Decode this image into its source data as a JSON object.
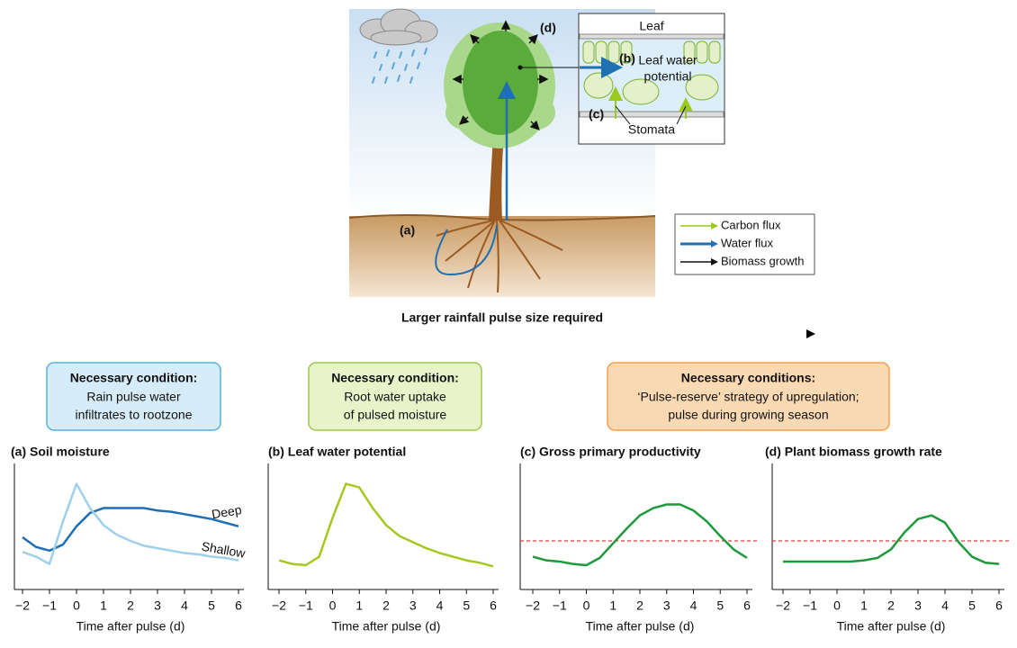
{
  "diagram": {
    "leaf_title": "Leaf",
    "label_b": "(b)",
    "leaf_water_potential": [
      "Leaf water",
      "potential"
    ],
    "label_c": "(c)",
    "stomata": "Stomata",
    "label_d": "(d)",
    "label_a": "(a)",
    "legend": [
      {
        "name": "Carbon flux",
        "color": "#9cc91e"
      },
      {
        "name": "Water flux",
        "color": "#1f6fb4"
      },
      {
        "name": "Biomass growth",
        "color": "#111111"
      }
    ]
  },
  "arrow_label": "Larger rainfall pulse size required",
  "conditions": [
    {
      "title": "Necessary condition:",
      "lines": [
        "Rain pulse water",
        "infiltrates to rootzone"
      ]
    },
    {
      "title": "Necessary condition:",
      "lines": [
        "Root water uptake",
        "of pulsed moisture"
      ]
    },
    {
      "title": "Necessary conditions:",
      "lines": [
        "‘Pulse-reserve’ strategy of upregulation;",
        "pulse during growing season"
      ]
    }
  ],
  "chart_data": [
    {
      "type": "line",
      "title": "(a)  Soil moisture",
      "xlabel": "Time after pulse (d)",
      "x": [
        -2,
        -1.5,
        -1,
        -0.5,
        0,
        0.5,
        1,
        1.5,
        2,
        2.5,
        3,
        3.5,
        4,
        4.5,
        5,
        5.5,
        6
      ],
      "series": [
        {
          "name": "Deep",
          "color": "#1f6fb4",
          "values": [
            0.43,
            0.35,
            0.32,
            0.37,
            0.52,
            0.63,
            0.67,
            0.67,
            0.67,
            0.67,
            0.65,
            0.64,
            0.62,
            0.6,
            0.58,
            0.55,
            0.52
          ]
        },
        {
          "name": "Shallow",
          "color": "#9fd0ea",
          "values": [
            0.31,
            0.27,
            0.21,
            0.56,
            0.87,
            0.67,
            0.53,
            0.45,
            0.4,
            0.36,
            0.34,
            0.32,
            0.3,
            0.29,
            0.27,
            0.26,
            0.24
          ]
        }
      ],
      "xlim": [
        -2,
        6
      ],
      "ylim": [
        0,
        1
      ],
      "xticks": [
        {
          "value": -2,
          "label": "−2"
        },
        {
          "value": -1,
          "label": "−1"
        },
        0,
        1,
        2,
        3,
        4,
        5,
        6
      ]
    },
    {
      "type": "line",
      "title": "(b)  Leaf water potential",
      "xlabel": "Time after pulse (d)",
      "x": [
        -2,
        -1.5,
        -1,
        -0.5,
        0,
        0.5,
        1,
        1.5,
        2,
        2.5,
        3,
        3.5,
        4,
        4.5,
        5,
        5.5,
        6
      ],
      "series": [
        {
          "color": "#a6c81e",
          "values": [
            0.24,
            0.21,
            0.2,
            0.27,
            0.59,
            0.87,
            0.84,
            0.67,
            0.53,
            0.44,
            0.39,
            0.34,
            0.3,
            0.27,
            0.24,
            0.22,
            0.19
          ]
        }
      ],
      "xlim": [
        -2,
        6
      ],
      "ylim": [
        0,
        1
      ],
      "xticks": [
        {
          "value": -2,
          "label": "−2"
        },
        {
          "value": -1,
          "label": "−1"
        },
        0,
        1,
        2,
        3,
        4,
        5,
        6
      ]
    },
    {
      "type": "line",
      "title": "(c)  Gross primary productivity",
      "xlabel": "Time after pulse (d)",
      "x": [
        -2,
        -1.5,
        -1,
        -0.5,
        0,
        0.5,
        1,
        1.5,
        2,
        2.5,
        3,
        3.5,
        4,
        4.5,
        5,
        5.5,
        6
      ],
      "series": [
        {
          "color": "#1e9a3c",
          "values": [
            0.27,
            0.24,
            0.23,
            0.21,
            0.2,
            0.26,
            0.38,
            0.5,
            0.61,
            0.67,
            0.7,
            0.7,
            0.65,
            0.56,
            0.44,
            0.33,
            0.26
          ]
        }
      ],
      "threshold": 0.4,
      "threshold_color": "#e0403a",
      "xlim": [
        -2,
        6
      ],
      "ylim": [
        0,
        1
      ],
      "xticks": [
        {
          "value": -2,
          "label": "−2"
        },
        {
          "value": -1,
          "label": "−1"
        },
        0,
        1,
        2,
        3,
        4,
        5,
        6
      ]
    },
    {
      "type": "line",
      "title": "(d)  Plant biomass growth rate",
      "xlabel": "Time after pulse (d)",
      "x": [
        -2,
        -1.5,
        -1,
        -0.5,
        0,
        0.5,
        1,
        1.5,
        2,
        2.5,
        3,
        3.5,
        4,
        4.5,
        5,
        5.5,
        6
      ],
      "series": [
        {
          "color": "#1e9a3c",
          "values": [
            0.23,
            0.23,
            0.23,
            0.23,
            0.23,
            0.23,
            0.24,
            0.26,
            0.33,
            0.47,
            0.58,
            0.61,
            0.55,
            0.39,
            0.27,
            0.22,
            0.21
          ]
        }
      ],
      "threshold": 0.4,
      "threshold_color": "#e0403a",
      "xlim": [
        -2,
        6
      ],
      "ylim": [
        0,
        1
      ],
      "xticks": [
        {
          "value": -2,
          "label": "−2"
        },
        {
          "value": -1,
          "label": "−1"
        },
        0,
        1,
        2,
        3,
        4,
        5,
        6
      ]
    }
  ]
}
